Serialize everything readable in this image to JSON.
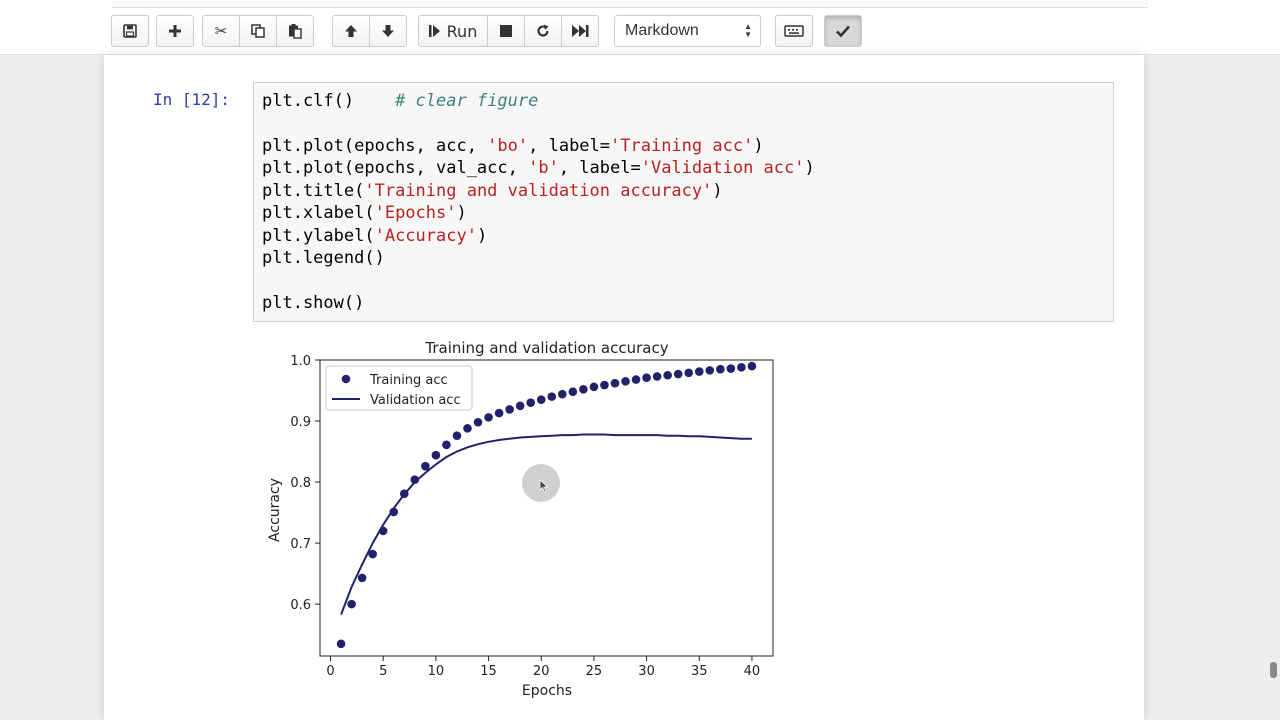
{
  "toolbar": {
    "run_label": "Run",
    "cell_type": "Markdown",
    "buttons": {
      "save": "save-icon",
      "insert": "plus-icon",
      "cut": "scissors-icon",
      "copy": "copy-icon",
      "paste": "paste-icon",
      "move_up": "arrow-up-icon",
      "move_down": "arrow-down-icon",
      "run": "step-forward-icon",
      "interrupt": "stop-icon",
      "restart": "restart-icon",
      "restart_run_all": "fast-forward-icon",
      "keyboard": "keyboard-icon",
      "celltoolbar": "check-icon"
    }
  },
  "cell": {
    "prompt": "In [12]:",
    "lines": [
      {
        "code": "plt.clf()",
        "comment": "# clear figure"
      },
      {
        "code": ""
      },
      {
        "pre": "plt.plot(epochs, acc, ",
        "s1": "'bo'",
        "mid": ", label=",
        "s2": "'Training acc'",
        "post": ")"
      },
      {
        "pre": "plt.plot(epochs, val_acc, ",
        "s1": "'b'",
        "mid": ", label=",
        "s2": "'Validation acc'",
        "post": ")"
      },
      {
        "pre": "plt.title(",
        "s1": "'Training and validation accuracy'",
        "post": ")"
      },
      {
        "pre": "plt.xlabel(",
        "s1": "'Epochs'",
        "post": ")"
      },
      {
        "pre": "plt.ylabel(",
        "s1": "'Accuracy'",
        "post": ")"
      },
      {
        "code": "plt.legend()"
      },
      {
        "code": ""
      },
      {
        "code": "plt.show()"
      }
    ]
  },
  "colors": {
    "series": "#22226b",
    "prompt": "#303f9f",
    "string": "#ba2121",
    "comment": "#408080"
  },
  "chart_data": {
    "type": "line",
    "title": "Training and validation accuracy",
    "xlabel": "Epochs",
    "ylabel": "Accuracy",
    "xlim": [
      -1,
      42
    ],
    "ylim": [
      0.515,
      1.0
    ],
    "xticks": [
      0,
      5,
      10,
      15,
      20,
      25,
      30,
      35,
      40
    ],
    "yticks": [
      0.6,
      0.7,
      0.8,
      0.9,
      1.0
    ],
    "ytick_labels": [
      "0.6",
      "0.7",
      "0.8",
      "0.9",
      "1.0"
    ],
    "legend_position": "top-left",
    "grid": false,
    "series": [
      {
        "name": "Training acc",
        "style": "points",
        "x": [
          1,
          2,
          3,
          4,
          5,
          6,
          7,
          8,
          9,
          10,
          11,
          12,
          13,
          14,
          15,
          16,
          17,
          18,
          19,
          20,
          21,
          22,
          23,
          24,
          25,
          26,
          27,
          28,
          29,
          30,
          31,
          32,
          33,
          34,
          35,
          36,
          37,
          38,
          39,
          40
        ],
        "values": [
          0.535,
          0.6,
          0.643,
          0.682,
          0.72,
          0.751,
          0.781,
          0.804,
          0.826,
          0.844,
          0.861,
          0.876,
          0.888,
          0.898,
          0.906,
          0.913,
          0.919,
          0.925,
          0.93,
          0.935,
          0.94,
          0.944,
          0.948,
          0.952,
          0.956,
          0.959,
          0.962,
          0.965,
          0.968,
          0.971,
          0.973,
          0.975,
          0.977,
          0.979,
          0.981,
          0.983,
          0.985,
          0.986,
          0.988,
          0.99
        ]
      },
      {
        "name": "Validation acc",
        "style": "line",
        "x": [
          1,
          2,
          3,
          4,
          5,
          6,
          7,
          8,
          9,
          10,
          11,
          12,
          13,
          14,
          15,
          16,
          17,
          18,
          19,
          20,
          21,
          22,
          23,
          24,
          25,
          26,
          27,
          28,
          29,
          30,
          31,
          32,
          33,
          34,
          35,
          36,
          37,
          38,
          39,
          40
        ],
        "values": [
          0.583,
          0.628,
          0.665,
          0.7,
          0.73,
          0.757,
          0.78,
          0.8,
          0.815,
          0.829,
          0.841,
          0.85,
          0.857,
          0.862,
          0.866,
          0.869,
          0.871,
          0.873,
          0.874,
          0.875,
          0.876,
          0.877,
          0.877,
          0.878,
          0.878,
          0.878,
          0.877,
          0.877,
          0.877,
          0.877,
          0.877,
          0.876,
          0.876,
          0.875,
          0.875,
          0.874,
          0.873,
          0.872,
          0.871,
          0.871
        ]
      }
    ]
  }
}
